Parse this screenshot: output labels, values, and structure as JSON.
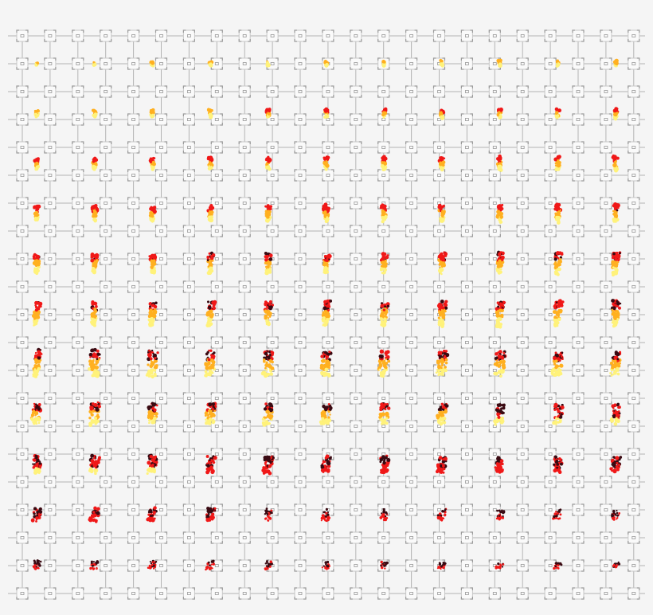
{
  "sprite_sheet": {
    "frame_rows": 11,
    "frames_per_row": 11,
    "colors": {
      "background": "#f5f5f5",
      "grid_line": "#b4b4b4",
      "node_border": "#9a9a9a",
      "flame_core": "#fff27a",
      "flame_mid": "#ffb020",
      "flame_outer": "#f01818",
      "ember": "#3a0a12"
    }
  }
}
